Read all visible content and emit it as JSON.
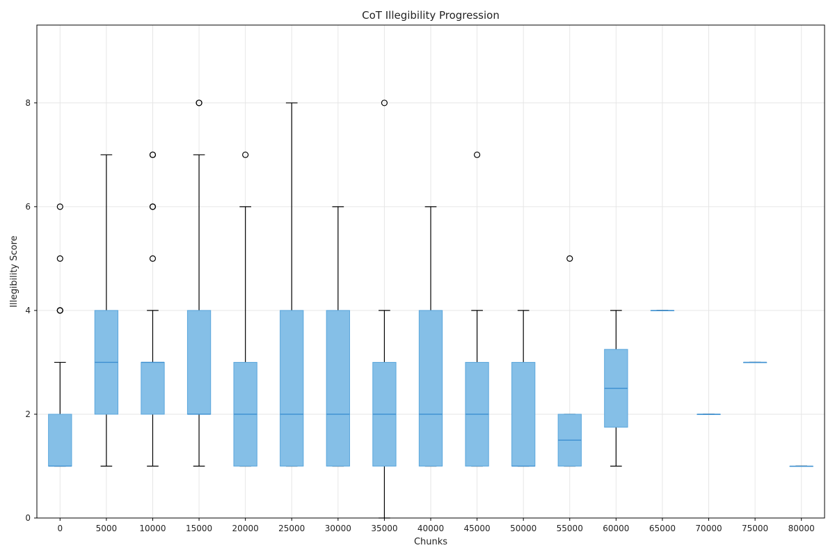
{
  "chart_data": {
    "type": "box",
    "title": "CoT Illegibility Progression",
    "xlabel": "Chunks",
    "ylabel": "Illegibility Score",
    "ylim": [
      0,
      9.5
    ],
    "yticks": [
      0,
      2,
      4,
      6,
      8
    ],
    "grid": true,
    "colors": {
      "box_fill": "#85bfe7",
      "box_edge": "#5aa6dc",
      "median": "#3b8ed0",
      "whisker": "#000000",
      "grid": "#e6e6e6"
    },
    "categories": [
      "0",
      "5000",
      "10000",
      "15000",
      "20000",
      "25000",
      "30000",
      "35000",
      "40000",
      "45000",
      "50000",
      "55000",
      "60000",
      "65000",
      "70000",
      "75000",
      "80000"
    ],
    "boxes": [
      {
        "label": "0",
        "whislo": 1,
        "q1": 1,
        "med": 1,
        "q3": 2,
        "whishi": 3,
        "fliers": [
          4,
          4,
          4,
          5,
          6
        ]
      },
      {
        "label": "5000",
        "whislo": 1,
        "q1": 2,
        "med": 3,
        "q3": 4,
        "whishi": 7,
        "fliers": []
      },
      {
        "label": "10000",
        "whislo": 1,
        "q1": 2,
        "med": 3,
        "q3": 3,
        "whishi": 4,
        "fliers": [
          5,
          6,
          6,
          7,
          7
        ]
      },
      {
        "label": "15000",
        "whislo": 1,
        "q1": 2,
        "med": 2,
        "q3": 4,
        "whishi": 7,
        "fliers": [
          8,
          8
        ]
      },
      {
        "label": "20000",
        "whislo": 1,
        "q1": 1,
        "med": 2,
        "q3": 3,
        "whishi": 6,
        "fliers": [
          7
        ]
      },
      {
        "label": "25000",
        "whislo": 1,
        "q1": 1,
        "med": 2,
        "q3": 4,
        "whishi": 8,
        "fliers": []
      },
      {
        "label": "30000",
        "whislo": 1,
        "q1": 1,
        "med": 2,
        "q3": 4,
        "whishi": 6,
        "fliers": []
      },
      {
        "label": "35000",
        "whislo": 0,
        "q1": 1,
        "med": 2,
        "q3": 3,
        "whishi": 4,
        "fliers": [
          8
        ]
      },
      {
        "label": "40000",
        "whislo": 1,
        "q1": 1,
        "med": 2,
        "q3": 4,
        "whishi": 6,
        "fliers": []
      },
      {
        "label": "45000",
        "whislo": 1,
        "q1": 1,
        "med": 2,
        "q3": 3,
        "whishi": 4,
        "fliers": [
          7
        ]
      },
      {
        "label": "50000",
        "whislo": 1,
        "q1": 1,
        "med": 1,
        "q3": 3,
        "whishi": 4,
        "fliers": []
      },
      {
        "label": "55000",
        "whislo": 1,
        "q1": 1,
        "med": 1.5,
        "q3": 2,
        "whishi": 2,
        "fliers": [
          5
        ]
      },
      {
        "label": "60000",
        "whislo": 1,
        "q1": 1.75,
        "med": 2.5,
        "q3": 3.25,
        "whishi": 4,
        "fliers": []
      },
      {
        "label": "65000",
        "whislo": 4,
        "q1": 4,
        "med": 4,
        "q3": 4,
        "whishi": 4,
        "fliers": []
      },
      {
        "label": "70000",
        "whislo": 2,
        "q1": 2,
        "med": 2,
        "q3": 2,
        "whishi": 2,
        "fliers": []
      },
      {
        "label": "75000",
        "whislo": 3,
        "q1": 3,
        "med": 3,
        "q3": 3,
        "whishi": 3,
        "fliers": []
      },
      {
        "label": "80000",
        "whislo": 1,
        "q1": 1,
        "med": 1,
        "q3": 1,
        "whishi": 1,
        "fliers": []
      }
    ]
  }
}
